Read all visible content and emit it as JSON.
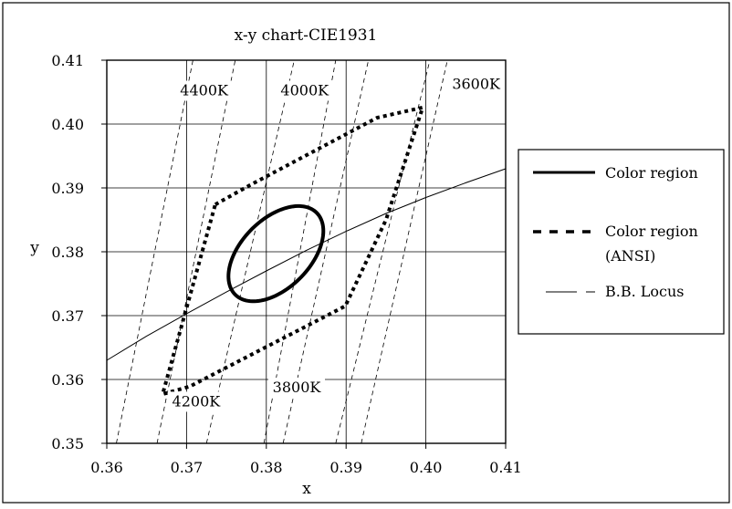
{
  "chart_data": {
    "type": "line",
    "title": "x-y chart-CIE1931",
    "xlabel": "x",
    "ylabel": "y",
    "xlim": [
      0.36,
      0.41
    ],
    "ylim": [
      0.35,
      0.41
    ],
    "xticks": [
      "0.36",
      "0.37",
      "0.38",
      "0.39",
      "0.40",
      "0.41"
    ],
    "yticks": [
      "0.35",
      "0.36",
      "0.37",
      "0.38",
      "0.39",
      "0.40",
      "0.41"
    ],
    "grid": true,
    "legend_position": "right",
    "legend": [
      {
        "label": "Color region",
        "style": "solid-thick"
      },
      {
        "label": "Color region\n(ANSI)",
        "label_line1": "Color region",
        "label_line2": "(ANSI)",
        "style": "dashed-thick"
      },
      {
        "label": "B.B. Locus",
        "style": "solid-thin"
      }
    ],
    "cct_labels": [
      {
        "text": "4400K",
        "x": 0.3722,
        "y": 0.4045
      },
      {
        "text": "4000K",
        "x": 0.3848,
        "y": 0.4045
      },
      {
        "text": "3600K",
        "x": 0.4063,
        "y": 0.4055
      },
      {
        "text": "4200K",
        "x": 0.3712,
        "y": 0.3558
      },
      {
        "text": "3800K",
        "x": 0.3838,
        "y": 0.358
      }
    ],
    "series": [
      {
        "name": "Color region",
        "shape": "ellipse",
        "center": [
          0.3812,
          0.3797
        ],
        "a": 0.0083,
        "b": 0.0047,
        "rotation_deg": 57.8
      },
      {
        "name": "Color region (ANSI)",
        "x": [
          0.3736,
          0.3779,
          0.3939,
          0.3996,
          0.395,
          0.3899,
          0.3704,
          0.367,
          0.3736
        ],
        "y": [
          0.3874,
          0.3904,
          0.401,
          0.4026,
          0.385,
          0.3715,
          0.3589,
          0.3577,
          0.3874
        ]
      },
      {
        "name": "B.B. Locus",
        "x": [
          0.36,
          0.365,
          0.37,
          0.375,
          0.38,
          0.385,
          0.39,
          0.395,
          0.4,
          0.405,
          0.41
        ],
        "y": [
          0.363,
          0.3668,
          0.3703,
          0.3737,
          0.377,
          0.3802,
          0.3832,
          0.386,
          0.3885,
          0.3908,
          0.393
        ]
      }
    ],
    "isotherm_lines": [
      {
        "x1": 0.3612,
        "y1": 0.35,
        "x2": 0.3708,
        "y2": 0.41
      },
      {
        "x1": 0.3663,
        "y1": 0.35,
        "x2": 0.3761,
        "y2": 0.41
      },
      {
        "x1": 0.3725,
        "y1": 0.35,
        "x2": 0.3835,
        "y2": 0.41
      },
      {
        "x1": 0.3797,
        "y1": 0.35,
        "x2": 0.3887,
        "y2": 0.41
      },
      {
        "x1": 0.3821,
        "y1": 0.35,
        "x2": 0.3928,
        "y2": 0.41
      },
      {
        "x1": 0.3887,
        "y1": 0.35,
        "x2": 0.4005,
        "y2": 0.41
      },
      {
        "x1": 0.3919,
        "y1": 0.35,
        "x2": 0.4027,
        "y2": 0.41
      }
    ]
  }
}
